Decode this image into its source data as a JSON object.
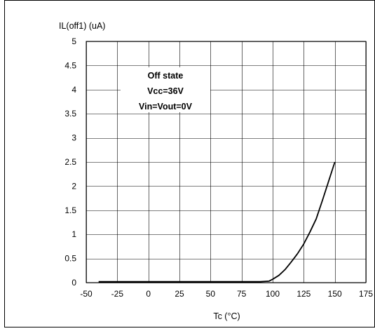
{
  "chart_data": {
    "type": "line",
    "title": "",
    "xlabel": "Tc (°C)",
    "ylabel": "IL(off1) (uA)",
    "xlim": [
      -50,
      175
    ],
    "ylim": [
      0,
      5
    ],
    "xticks": [
      -50,
      -25,
      0,
      25,
      50,
      75,
      100,
      125,
      150,
      175
    ],
    "yticks": [
      0,
      0.5,
      1,
      1.5,
      2,
      2.5,
      3,
      3.5,
      4,
      4.5,
      5
    ],
    "xtick_labels": [
      "-50",
      "-25",
      "0",
      "25",
      "50",
      "75",
      "100",
      "125",
      "150",
      "175"
    ],
    "ytick_labels": [
      "0",
      "0.5",
      "1",
      "1.5",
      "2",
      "2.5",
      "3",
      "3.5",
      "4",
      "4.5",
      "5"
    ],
    "grid": true,
    "legend": "none",
    "annotation": {
      "lines": [
        "Off state",
        "Vcc=36V",
        "Vin=Vout=0V"
      ]
    },
    "series": [
      {
        "color": "#000000",
        "x": [
          -40,
          0,
          50,
          90,
          97,
          100,
          105,
          110,
          115,
          120,
          125,
          130,
          135,
          140,
          145,
          150
        ],
        "y": [
          0.02,
          0.02,
          0.02,
          0.02,
          0.03,
          0.07,
          0.15,
          0.27,
          0.43,
          0.6,
          0.8,
          1.05,
          1.32,
          1.7,
          2.1,
          2.5
        ]
      }
    ]
  }
}
